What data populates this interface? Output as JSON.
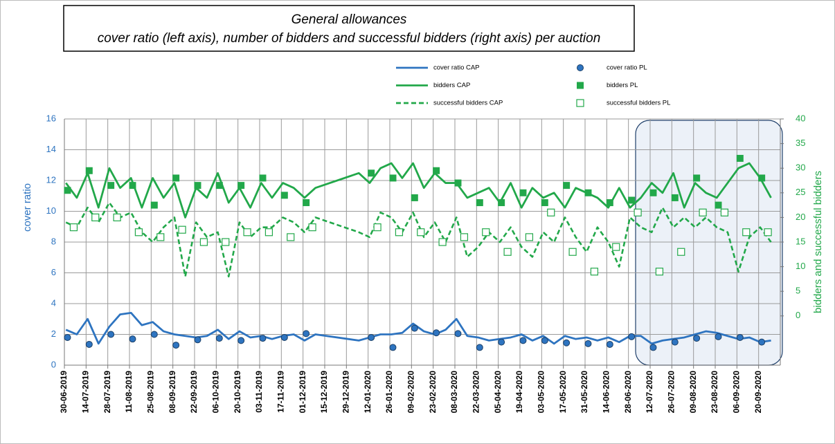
{
  "chart_data": {
    "type": "line",
    "title": "General allowances",
    "subtitle": "cover ratio (left axis), number of bidders and successful bidders (right axis) per auction",
    "y_label": "cover ratio",
    "y2_label": "bidders and successful bidders",
    "ylim": [
      0,
      16
    ],
    "yticks": [
      0,
      2,
      4,
      6,
      8,
      10,
      12,
      14,
      16
    ],
    "y2lim": [
      -10,
      40
    ],
    "y2ticks": [
      0,
      5,
      10,
      15,
      20,
      25,
      30,
      35,
      40
    ],
    "xlim": [
      "30-06-2019",
      "04-10-2020"
    ],
    "xticks": [
      "30-06-2019",
      "14-07-2019",
      "28-07-2019",
      "11-08-2019",
      "25-08-2019",
      "08-09-2019",
      "22-09-2019",
      "06-10-2019",
      "20-10-2019",
      "03-11-2019",
      "17-11-2019",
      "01-12-2019",
      "15-12-2019",
      "29-12-2019",
      "12-01-2020",
      "26-01-2020",
      "09-02-2020",
      "23-02-2020",
      "08-03-2020",
      "22-03-2020",
      "05-04-2020",
      "19-04-2020",
      "03-05-2020",
      "17-05-2020",
      "31-05-2020",
      "14-06-2020",
      "28-06-2020",
      "12-07-2020",
      "26-07-2020",
      "09-08-2020",
      "23-08-2020",
      "06-09-2020",
      "20-09-2020"
    ],
    "grid": true,
    "x": [
      "01-07-2019",
      "08-07-2019",
      "15-07-2019",
      "22-07-2019",
      "29-07-2019",
      "05-08-2019",
      "12-08-2019",
      "19-08-2019",
      "26-08-2019",
      "02-09-2019",
      "09-09-2019",
      "16-09-2019",
      "23-09-2019",
      "30-09-2019",
      "07-10-2019",
      "14-10-2019",
      "21-10-2019",
      "28-10-2019",
      "04-11-2019",
      "11-11-2019",
      "18-11-2019",
      "25-11-2019",
      "02-12-2019",
      "09-12-2019",
      "06-01-2020",
      "13-01-2020",
      "20-01-2020",
      "27-01-2020",
      "03-02-2020",
      "10-02-2020",
      "17-02-2020",
      "24-02-2020",
      "02-03-2020",
      "09-03-2020",
      "16-03-2020",
      "23-03-2020",
      "30-03-2020",
      "06-04-2020",
      "13-04-2020",
      "20-04-2020",
      "27-04-2020",
      "04-05-2020",
      "11-05-2020",
      "18-05-2020",
      "25-05-2020",
      "01-06-2020",
      "08-06-2020",
      "15-06-2020",
      "22-06-2020",
      "29-06-2020",
      "06-07-2020",
      "13-07-2020",
      "20-07-2020",
      "27-07-2020",
      "03-08-2020",
      "10-08-2020",
      "17-08-2020",
      "24-08-2020",
      "31-08-2020",
      "07-09-2020",
      "14-09-2020",
      "21-09-2020",
      "28-09-2020"
    ],
    "series": [
      {
        "name": "cover ratio CAP",
        "color": "#2e74c0",
        "style": "line",
        "values": [
          2.3,
          2.0,
          3.0,
          1.4,
          2.5,
          3.3,
          3.4,
          2.6,
          2.8,
          2.2,
          2.0,
          1.9,
          1.8,
          1.9,
          2.3,
          1.7,
          2.2,
          1.8,
          1.9,
          1.7,
          1.9,
          2.0,
          1.6,
          2.0,
          1.6,
          1.8,
          2.0,
          2.0,
          2.1,
          2.7,
          2.2,
          2.0,
          2.3,
          3.0,
          1.9,
          1.8,
          1.6,
          1.7,
          1.8,
          2.0,
          1.6,
          1.9,
          1.4,
          1.9,
          1.7,
          1.8,
          1.6,
          1.8,
          1.5,
          1.9,
          1.9,
          1.4,
          1.6,
          1.7,
          1.8,
          2.0,
          2.2,
          2.1,
          1.9,
          1.7,
          1.8,
          1.5,
          1.6
        ]
      },
      {
        "name": "bidders CAP",
        "color": "#22a84a",
        "style": "line",
        "axis": "y2",
        "values": [
          27,
          24,
          29,
          22,
          30,
          26,
          28,
          22,
          28,
          24,
          27,
          20,
          26,
          24,
          29,
          23,
          26,
          22,
          27,
          24,
          27,
          26,
          24,
          26,
          29,
          27,
          30,
          31,
          28,
          31,
          26,
          29,
          27,
          27,
          24,
          25,
          26,
          23,
          27,
          22,
          26,
          24,
          25,
          22,
          26,
          25,
          24,
          22,
          26,
          22,
          24,
          27,
          25,
          29,
          22,
          27,
          25,
          24,
          27,
          30,
          31,
          28,
          24
        ]
      },
      {
        "name": "successful bidders CAP",
        "color": "#22a84a",
        "style": "dashed",
        "axis": "y2",
        "values": [
          19,
          18,
          22,
          19,
          23,
          20,
          21,
          17,
          15,
          18,
          20,
          8,
          19,
          16,
          17,
          8,
          19,
          16,
          18,
          18,
          20,
          19,
          17,
          20,
          17,
          16,
          21,
          20,
          17,
          21,
          16,
          19,
          15,
          20,
          12,
          14,
          17,
          15,
          18,
          14,
          12,
          17,
          15,
          20,
          16,
          13,
          18,
          15,
          10,
          20,
          18,
          17,
          22,
          18,
          20,
          18,
          20,
          18,
          17,
          9,
          16,
          18,
          15
        ]
      },
      {
        "name": "cover ratio PL",
        "color": "#2e74c0",
        "style": "circle",
        "x": [
          "02-07-2019",
          "16-07-2019",
          "30-07-2019",
          "13-08-2019",
          "27-08-2019",
          "10-09-2019",
          "24-09-2019",
          "08-10-2019",
          "22-10-2019",
          "05-11-2019",
          "19-11-2019",
          "03-12-2019",
          "14-01-2020",
          "28-01-2020",
          "11-02-2020",
          "25-02-2020",
          "10-03-2020",
          "24-03-2020",
          "07-04-2020",
          "21-04-2020",
          "05-05-2020",
          "19-05-2020",
          "02-06-2020",
          "16-06-2020",
          "30-06-2020",
          "14-07-2020",
          "28-07-2020",
          "11-08-2020",
          "25-08-2020",
          "08-09-2020",
          "22-09-2020"
        ],
        "values": [
          1.8,
          1.35,
          2.0,
          1.7,
          2.0,
          1.3,
          1.65,
          1.75,
          1.6,
          1.75,
          1.8,
          2.05,
          1.8,
          1.15,
          2.4,
          2.1,
          2.05,
          1.15,
          1.5,
          1.6,
          1.6,
          1.45,
          1.4,
          1.35,
          1.85,
          1.15,
          1.5,
          1.75,
          1.85,
          1.8,
          1.5
        ]
      },
      {
        "name": "bidders PL",
        "color": "#22a84a",
        "style": "square",
        "axis": "y2",
        "x": [
          "02-07-2019",
          "16-07-2019",
          "30-07-2019",
          "13-08-2019",
          "27-08-2019",
          "10-09-2019",
          "24-09-2019",
          "08-10-2019",
          "22-10-2019",
          "05-11-2019",
          "19-11-2019",
          "03-12-2019",
          "14-01-2020",
          "28-01-2020",
          "11-02-2020",
          "25-02-2020",
          "10-03-2020",
          "24-03-2020",
          "07-04-2020",
          "21-04-2020",
          "05-05-2020",
          "19-05-2020",
          "02-06-2020",
          "16-06-2020",
          "30-06-2020",
          "14-07-2020",
          "28-07-2020",
          "11-08-2020",
          "25-08-2020",
          "08-09-2020",
          "22-09-2020"
        ],
        "values": [
          25.5,
          29.5,
          26.5,
          26.5,
          22.5,
          28,
          26.5,
          26.5,
          26.5,
          28,
          24.5,
          23,
          29,
          28,
          24,
          29.5,
          27,
          23,
          23,
          25,
          23,
          26.5,
          25,
          23,
          23.5,
          25,
          24,
          28,
          22.5,
          32,
          28
        ]
      },
      {
        "name": "successful bidders PL",
        "color": "#22a84a",
        "style": "square-open",
        "axis": "y2",
        "x": [
          "06-07-2019",
          "20-07-2019",
          "03-08-2019",
          "17-08-2019",
          "31-08-2019",
          "14-09-2019",
          "28-09-2019",
          "12-10-2019",
          "26-10-2019",
          "09-11-2019",
          "23-11-2019",
          "07-12-2019",
          "18-01-2020",
          "01-02-2020",
          "15-02-2020",
          "29-02-2020",
          "14-03-2020",
          "28-03-2020",
          "11-04-2020",
          "25-04-2020",
          "09-05-2020",
          "23-05-2020",
          "06-06-2020",
          "20-06-2020",
          "04-07-2020",
          "18-07-2020",
          "01-08-2020",
          "15-08-2020",
          "29-08-2020",
          "12-09-2020",
          "26-09-2020"
        ],
        "values": [
          18,
          20,
          20,
          17,
          16,
          17.5,
          15,
          15,
          17,
          17,
          16,
          18,
          18,
          17,
          17,
          15,
          16,
          17,
          13,
          16,
          21,
          13,
          9,
          14,
          21,
          9,
          13,
          21,
          21,
          17,
          17
        ]
      }
    ]
  }
}
